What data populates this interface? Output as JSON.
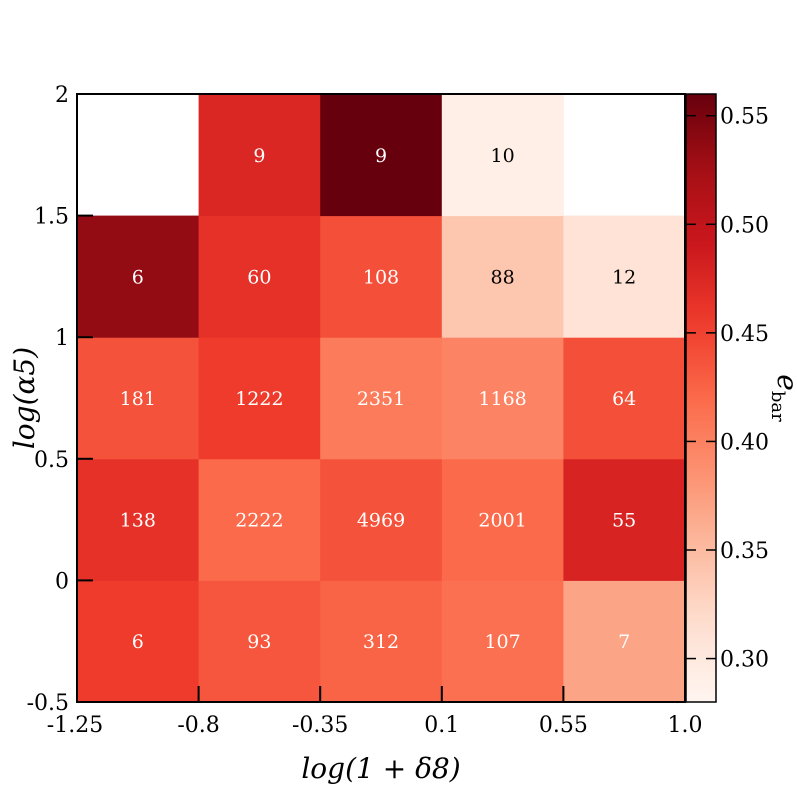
{
  "chart_data": {
    "type": "heatmap",
    "title": "",
    "xlabel": "log(1 + δ8)",
    "ylabel": "log(α5)",
    "x_edges": [
      -1.25,
      -0.8,
      -0.35,
      0.1,
      0.55,
      1.0
    ],
    "x_tick_labels": [
      "-1.25",
      "-0.8",
      "-0.35",
      "0.1",
      "0.55",
      "1.0"
    ],
    "y_edges": [
      -0.5,
      0,
      0.5,
      1,
      1.5,
      2
    ],
    "y_tick_labels": [
      "-0.5",
      "0",
      "0.5",
      "1",
      "1.5",
      "2"
    ],
    "xlim": [
      -1.25,
      1.0
    ],
    "ylim": [
      -0.5,
      2
    ],
    "colorbar": {
      "label": "e_bar",
      "label_main": "e",
      "label_sub": "bar",
      "range": [
        0.28,
        0.56
      ],
      "ticks": [
        0.3,
        0.35,
        0.4,
        0.45,
        0.5,
        0.55
      ],
      "tick_labels": [
        "0.30",
        "0.35",
        "0.40",
        "0.45",
        "0.50",
        "0.55"
      ],
      "colormap": "Reds"
    },
    "cells": [
      [
        {
          "value": 0.455,
          "count": "6"
        },
        {
          "value": 0.435,
          "count": "93"
        },
        {
          "value": 0.425,
          "count": "312"
        },
        {
          "value": 0.415,
          "count": "107"
        },
        {
          "value": 0.37,
          "count": "7"
        }
      ],
      [
        {
          "value": 0.465,
          "count": "138"
        },
        {
          "value": 0.42,
          "count": "2222"
        },
        {
          "value": 0.438,
          "count": "4969"
        },
        {
          "value": 0.42,
          "count": "2001"
        },
        {
          "value": 0.478,
          "count": "55"
        }
      ],
      [
        {
          "value": 0.438,
          "count": "181"
        },
        {
          "value": 0.455,
          "count": "1222"
        },
        {
          "value": 0.405,
          "count": "2351"
        },
        {
          "value": 0.398,
          "count": "1168"
        },
        {
          "value": 0.44,
          "count": "64"
        }
      ],
      [
        {
          "value": 0.535,
          "count": "6"
        },
        {
          "value": 0.465,
          "count": "60"
        },
        {
          "value": 0.44,
          "count": "108"
        },
        {
          "value": 0.34,
          "count": "88"
        },
        {
          "value": 0.31,
          "count": "12"
        }
      ],
      [
        {
          "value": null,
          "count": ""
        },
        {
          "value": 0.475,
          "count": "9"
        },
        {
          "value": 0.56,
          "count": "9"
        },
        {
          "value": 0.29,
          "count": "10"
        },
        {
          "value": null,
          "count": ""
        }
      ]
    ]
  }
}
